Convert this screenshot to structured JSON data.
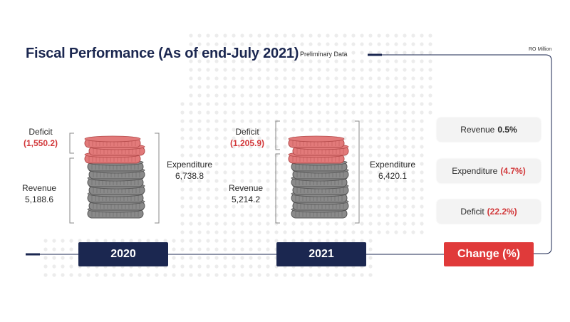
{
  "header": {
    "title": "Fiscal Performance (As of end-July 2021)",
    "preliminary": "Preliminary Data",
    "unit": "RO Million"
  },
  "chart_data": {
    "type": "table",
    "title": "Fiscal Performance (As of end-July 2021)",
    "unit": "RO Million",
    "categories": [
      "2020",
      "2021"
    ],
    "series": [
      {
        "name": "Revenue",
        "values": [
          5188.6,
          5214.2
        ]
      },
      {
        "name": "Expenditure",
        "values": [
          6738.8,
          6420.1
        ]
      },
      {
        "name": "Deficit",
        "values": [
          -1550.2,
          -1205.9
        ]
      }
    ]
  },
  "years": [
    {
      "label": "2020",
      "deficit_label": "Deficit",
      "deficit_value": "(1,550.2)",
      "revenue_label": "Revenue",
      "revenue_value": "5,188.6",
      "expenditure_label": "Expenditure",
      "expenditure_value": "6,738.8"
    },
    {
      "label": "2021",
      "deficit_label": "Deficit",
      "deficit_value": "(1,205.9)",
      "revenue_label": "Revenue",
      "revenue_value": "5,214.2",
      "expenditure_label": "Expenditure",
      "expenditure_value": "6,420.1"
    }
  ],
  "change": {
    "label": "Change (%)",
    "items": [
      {
        "name": "Revenue",
        "value": "0.5%"
      },
      {
        "name": "Expenditure",
        "value": "(4.7%)"
      },
      {
        "name": "Deficit",
        "value": "(22.2%)"
      }
    ]
  },
  "colors": {
    "navy": "#1b2750",
    "red": "#e03a3a",
    "coin_grey": "#8a8a8a",
    "coin_red": "#e27a7a"
  }
}
